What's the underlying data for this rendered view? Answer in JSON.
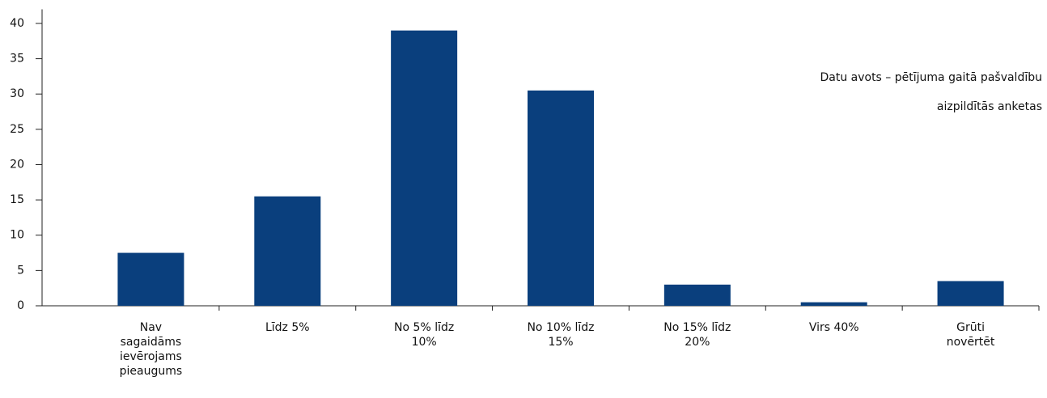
{
  "chart_data": {
    "type": "bar",
    "categories": [
      "Nav sagaidāms ievērojams pieaugums",
      "Līdz 5%",
      "No 5% līdz 10%",
      "No 10% līdz 15%",
      "No 15% līdz 20%",
      "Virs 40%",
      "Grūti novērtēt"
    ],
    "values": [
      7.5,
      15.5,
      39,
      30.5,
      3,
      0.5,
      3.5
    ],
    "color": "#0a3f7d",
    "ylim": [
      0,
      42
    ],
    "yticks": [
      0,
      5,
      10,
      15,
      20,
      25,
      30,
      35,
      40
    ],
    "annotations": [
      "Datu avots – pētījuma gaitā pašvaldību",
      "aizpildītās anketas"
    ]
  }
}
